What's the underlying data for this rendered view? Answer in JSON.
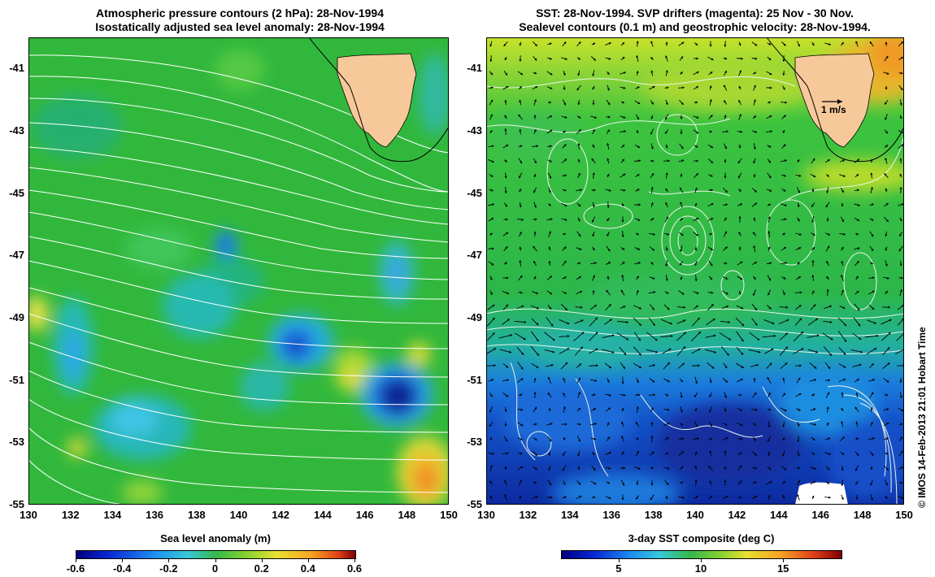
{
  "left_panel": {
    "title_line1": "Atmospheric pressure contours (2 hPa): 28-Nov-1994",
    "title_line2": "Isostatically adjusted sea level anomaly: 28-Nov-1994",
    "colorbar_label": "Sea level anomaly (m)",
    "colorbar_ticks": [
      "-0.6",
      "-0.4",
      "-0.2",
      "0",
      "0.2",
      "0.4",
      "0.6"
    ],
    "colorbar_range": [
      -0.6,
      0.6
    ]
  },
  "right_panel": {
    "title_line1": "SST: 28-Nov-1994. SVP drifters (magenta): 25 Nov - 30 Nov.",
    "title_line2": "Sealevel contours (0.1 m) and geostrophic velocity: 28-Nov-1994.",
    "colorbar_label": "3-day SST composite (deg C)",
    "colorbar_ticks": [
      "5",
      "10",
      "15"
    ],
    "colorbar_range": [
      1.5,
      18.5
    ],
    "velocity_legend": "1 m/s"
  },
  "axes": {
    "lat_ticks": [
      "-41",
      "-43",
      "-45",
      "-47",
      "-49",
      "-51",
      "-53",
      "-55"
    ],
    "lon_ticks": [
      "130",
      "132",
      "134",
      "136",
      "138",
      "140",
      "142",
      "144",
      "146",
      "148",
      "150"
    ],
    "lon_range": [
      130,
      150
    ],
    "lat_range": [
      -55,
      -40
    ]
  },
  "credit": "© IMOS 14-Feb-2013 21:01 Hobart Time",
  "colors": {
    "land": "#f7c89a",
    "background_green": "#2fbf3a",
    "contour_white": "#ffffff"
  }
}
